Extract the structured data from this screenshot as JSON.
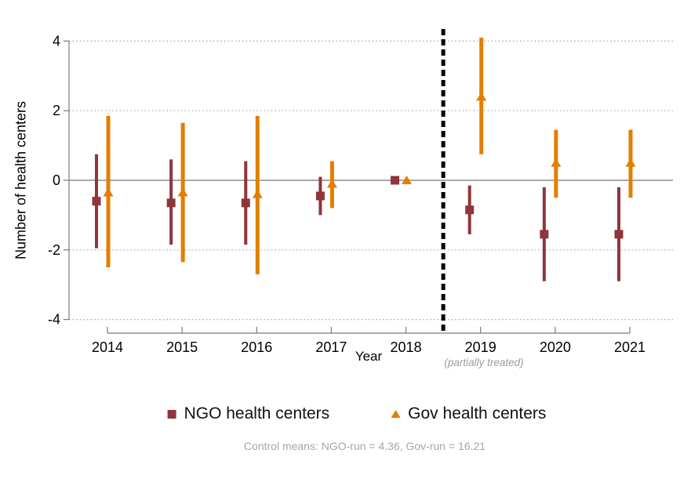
{
  "figure": {
    "y_axis_title": "Number of health centers",
    "x_axis_title": "Year",
    "treatment_note": "(partially treated)",
    "caption": "Control means: NGO-run = 4.36, Gov-run = 16.21"
  },
  "legend": {
    "position": "bottom",
    "items": [
      {
        "label": "NGO health centers",
        "marker": "square",
        "color": "#90353B"
      },
      {
        "label": "Gov health centers",
        "marker": "triangle",
        "color": "#E37E00"
      }
    ]
  },
  "chart_data": {
    "type": "scatter",
    "subtype": "event-study point estimates with confidence intervals",
    "title": "",
    "xlabel": "Year",
    "ylabel": "Number of health centers",
    "x": [
      2014,
      2015,
      2016,
      2017,
      2018,
      2019,
      2020,
      2021
    ],
    "x_tick_labels": [
      "2014",
      "2015",
      "2016",
      "2017",
      "2018",
      "2019",
      "2020",
      "2021"
    ],
    "y_axis": {
      "ticks": [
        4,
        2,
        0,
        -2,
        -4
      ],
      "tick_labels": [
        "4",
        "2",
        "0",
        "-2",
        "-4"
      ],
      "gridlines": [
        4,
        2,
        -2,
        -4
      ],
      "zero_line": true,
      "ylim": [
        -4.4,
        4.4
      ]
    },
    "reference_year": 2018,
    "treatment_line_x": 2018.5,
    "treatment_line_style": "dashed-black",
    "partially_treated_year": 2019,
    "series": [
      {
        "name": "NGO health centers",
        "marker": "square",
        "color": "#90353B",
        "values": [
          -0.6,
          -0.65,
          -0.65,
          -0.45,
          0,
          -0.85,
          -1.55,
          -1.55
        ],
        "ci_low": [
          -1.95,
          -1.85,
          -1.85,
          -1.0,
          0,
          -1.55,
          -2.9,
          -2.9
        ],
        "ci_high": [
          0.75,
          0.6,
          0.55,
          0.1,
          0,
          -0.15,
          -0.2,
          -0.2
        ]
      },
      {
        "name": "Gov health centers",
        "marker": "triangle",
        "color": "#E37E00",
        "values": [
          -0.35,
          -0.35,
          -0.4,
          -0.1,
          0,
          2.4,
          0.5,
          0.5
        ],
        "ci_low": [
          -2.5,
          -2.35,
          -2.7,
          -0.8,
          0,
          0.75,
          -0.5,
          -0.5
        ],
        "ci_high": [
          1.85,
          1.65,
          1.85,
          0.55,
          0,
          4.1,
          1.45,
          1.45
        ]
      }
    ],
    "annotations": [
      "(partially treated)"
    ],
    "caption": "Control means: NGO-run = 4.36, Gov-run = 16.21",
    "legend_entries": [
      "NGO health centers",
      "Gov health centers"
    ]
  },
  "colors": {
    "ngo": "#90353B",
    "gov": "#E37E00",
    "axis": "#7a7a7a",
    "zero_line": "#8c8c8c",
    "gridline": "#b0b0b0",
    "treatment_line": "#000000",
    "muted_text": "#a6a6a6"
  }
}
